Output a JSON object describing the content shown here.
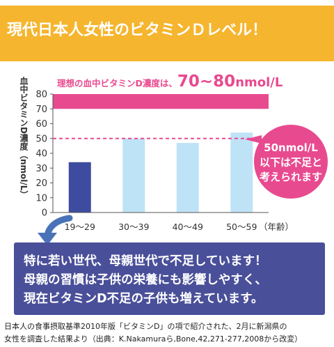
{
  "header": {
    "title": "現代日本人女性のビタミンＤレベル！"
  },
  "ideal_note": {
    "prefix": "理想の血中ビタミンD濃度は、",
    "value": "70~80",
    "unit": "nmol/L"
  },
  "threshold_note": {
    "line1": "50nmol/L",
    "line2": "以下は不足と",
    "line3": "考えられます"
  },
  "callout": {
    "line1": "特に若い世代、母親世代で不足しています！",
    "line2": "母親の習慣は子供の栄養にも影響しやすく、",
    "line3": "現在ビタミンD不足の子供も増えています。"
  },
  "footnote": {
    "line1": "日本人の食事摂取基準2010年版「ビタミンD」の項で紹介された、2月に新潟県の",
    "line2": "女性を調査した結果より（出典：K.Nakamuraら,Bone,42,271-277,2008から改変）"
  },
  "colors": {
    "banner": "#f5b52e",
    "ideal_band": "#e84a8f",
    "threshold_line": "#e84a8f",
    "bubble": "#e84a8f",
    "bar_highlight": "#3d4c9e",
    "bar_default": "#bfe3f6",
    "callout": "#4a4f99",
    "arrow": "#4a72b8"
  },
  "chart_data": {
    "type": "bar",
    "categories": [
      "19〜29",
      "30〜39",
      "40〜49",
      "50〜59"
    ],
    "xlabel": "（年齢）",
    "ylabel": "血中ビタミンD濃度（nmol/L）",
    "values": [
      34,
      50,
      47,
      54
    ],
    "highlight_index": 0,
    "ylim": [
      0,
      80
    ],
    "yticks": [
      "0",
      "10",
      "20",
      "30",
      "40",
      "50",
      "60",
      "70",
      "80"
    ],
    "ideal_range": [
      70,
      80
    ],
    "threshold": 50,
    "grid": false
  }
}
